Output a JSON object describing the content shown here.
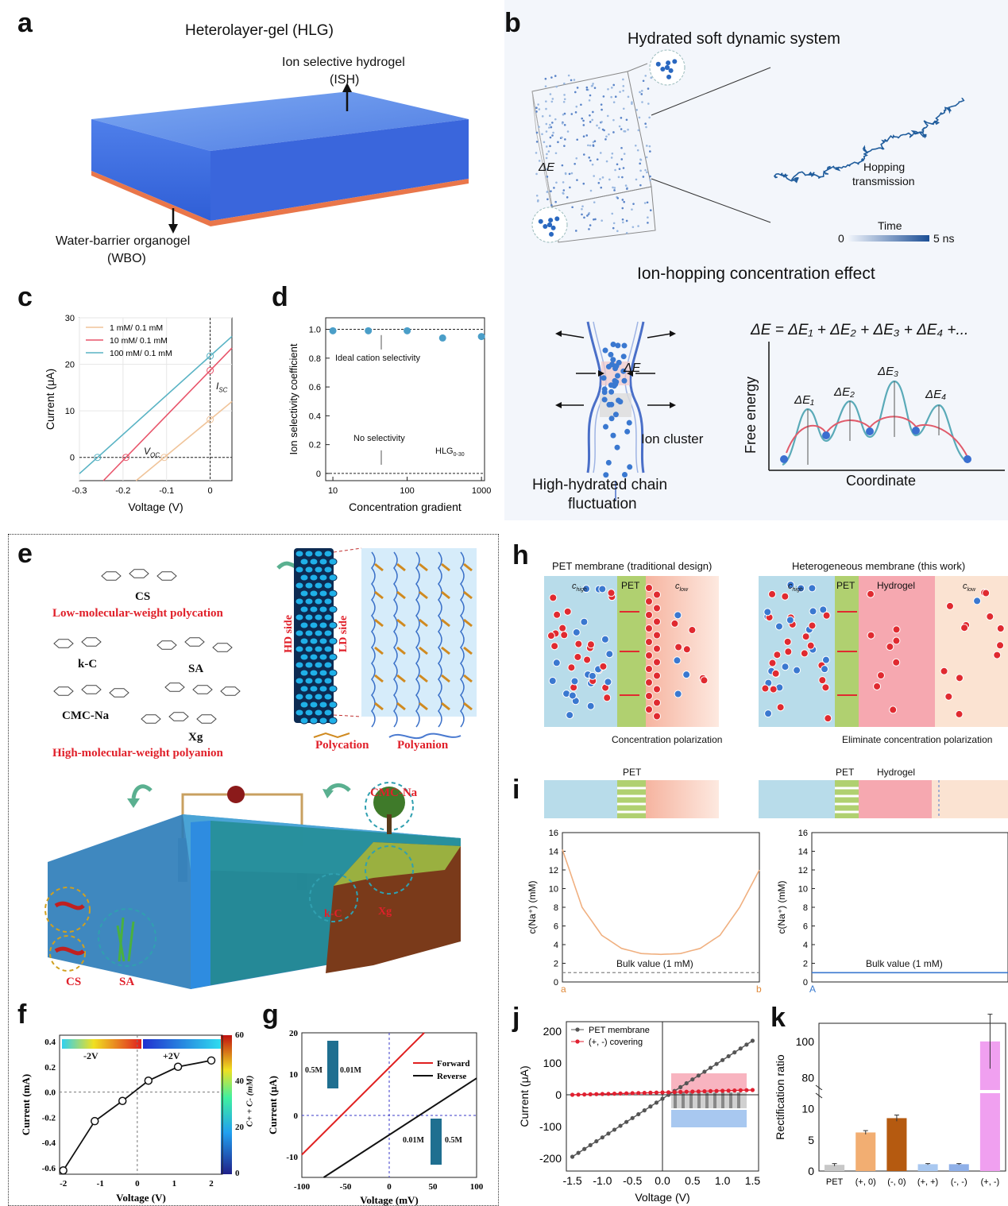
{
  "panels": {
    "a": {
      "label": "a",
      "title": "Heterolayer-gel (HLG)",
      "ish_label_1": "Ion selective hydrogel",
      "ish_label_2": "(ISH)",
      "wbo_label_1": "Water-barrier organogel",
      "wbo_label_2": "(WBO)",
      "colors": {
        "hydrogel": "#3f6fe0",
        "organogel": "#e9764a"
      }
    },
    "b": {
      "label": "b",
      "title": "Hydrated soft dynamic system",
      "delta_e": "ΔE",
      "hopping_1": "Hopping",
      "hopping_2": "transmission",
      "time_label": "Time",
      "time_start": "0",
      "time_end": "5 ns",
      "subtitle": "Ion-hopping concentration effect",
      "equation": "ΔE = ΔE₁ + ΔE₂ + ΔE₃ + ΔE₄ +...",
      "chain_delta": "ΔE",
      "ion_cluster": "Ion cluster",
      "chain_caption_1": "High-hydrated chain",
      "chain_caption_2": "fluctuation",
      "energy_ylabel": "Free energy",
      "energy_xlabel": "Coordinate",
      "barriers": [
        "ΔE₁",
        "ΔE₂",
        "ΔE₃",
        "ΔE₄"
      ]
    },
    "c": {
      "label": "c",
      "voc_label": "V",
      "voc_sub": "OC",
      "isc_label": "I",
      "isc_sub": "SC"
    },
    "d": {
      "label": "d",
      "annot_ideal": "Ideal cation selectivity",
      "annot_none": "No selectivity",
      "series_label": "HLG",
      "series_sub": "0-30"
    },
    "e": {
      "label": "e",
      "cs": "CS",
      "low_mw": "Low-molecular-weight polycation",
      "kc": "k-C",
      "sa": "SA",
      "cmc": "CMC-Na",
      "xg": "Xg",
      "high_mw": "High-molecular-weight polyanion",
      "hd_side": "HD side",
      "ld_side": "LD side",
      "polycation": "Polycation",
      "polyanion": "Polyanion",
      "scene_cmc": "CMC-Na",
      "scene_xg": "Xg",
      "scene_kc": "k-C",
      "scene_cs": "CS",
      "scene_sa": "SA"
    },
    "f": {
      "label": "f",
      "neg": "-2V",
      "pos": "+2V",
      "cbar_label": "C+ + C- (mM)",
      "cbar_ticks": [
        "60",
        "40",
        "20",
        "0"
      ]
    },
    "g": {
      "label": "g",
      "left_a": "0.5M",
      "left_b": "0.01M",
      "right_a": "0.01M",
      "right_b": "0.5M"
    },
    "h": {
      "label": "h",
      "left_title": "PET membrane (traditional design)",
      "right_title": "Heterogeneous membrane (this work)",
      "c_high": "c",
      "c_high_sub": "high",
      "c_low": "c",
      "c_low_sub": "low",
      "pet": "PET",
      "hydrogel": "Hydrogel",
      "left_caption": "Concentration polarization",
      "right_caption": "Eliminate concentration polarization"
    },
    "i": {
      "label": "i",
      "pet": "PET",
      "hydrogel": "Hydrogel",
      "left_bulk": "Bulk value (1 mM)",
      "right_bulk": "Bulk value (1 mM)",
      "left_a": "a",
      "left_b": "b",
      "right_a": "A"
    },
    "j": {
      "label": "j"
    },
    "k": {
      "label": "k"
    }
  },
  "chart_data": [
    {
      "panel": "c",
      "type": "line",
      "xlabel": "Voltage (V)",
      "ylabel": "Current (μA)",
      "xlim": [
        -0.3,
        0.05
      ],
      "ylim": [
        -5,
        30
      ],
      "xticks": [
        "-0.3",
        "-0.2",
        "-0.1",
        "0"
      ],
      "yticks": [
        "0",
        "10",
        "20",
        "30"
      ],
      "legend_position": "top-left",
      "series": [
        {
          "name": "1 mM/ 0.1 mM",
          "color": "#f0c49a",
          "x": [
            -0.17,
            0.05
          ],
          "y": [
            -5,
            12
          ]
        },
        {
          "name": "10 mM/ 0.1 mM",
          "color": "#e8546a",
          "x": [
            -0.245,
            0.05
          ],
          "y": [
            -5,
            23.5
          ]
        },
        {
          "name": "100 mM/ 0.1 mM",
          "color": "#59b3c4",
          "x": [
            -0.3,
            0.05
          ],
          "y": [
            -3.5,
            26
          ]
        }
      ]
    },
    {
      "panel": "d",
      "type": "scatter",
      "xlabel": "Concentration gradient",
      "ylabel": "Ion selectivity coefficient",
      "xscale": "log",
      "xlim": [
        8,
        1100
      ],
      "ylim": [
        -0.05,
        1.08
      ],
      "xticks": [
        "10",
        "100",
        "1000"
      ],
      "yticks": [
        "0",
        "0.2",
        "0.4",
        "0.6",
        "0.8",
        "1.0"
      ],
      "x": [
        10,
        30,
        100,
        300,
        1000
      ],
      "y": [
        0.99,
        0.99,
        0.99,
        0.94,
        0.95
      ]
    },
    {
      "panel": "f",
      "type": "line",
      "xlabel": "Voltage (V)",
      "ylabel": "Current (mA)",
      "xlim": [
        -2.1,
        2.3
      ],
      "ylim": [
        -0.65,
        0.45
      ],
      "xticks": [
        "-2",
        "-1",
        "0",
        "1",
        "2"
      ],
      "yticks": [
        "-0.6",
        "-0.4",
        "-0.2",
        "0.0",
        "0.2",
        "0.4"
      ],
      "x": [
        -2,
        -1.15,
        -0.4,
        0.3,
        1.1,
        2
      ],
      "y": [
        -0.62,
        -0.23,
        -0.07,
        0.09,
        0.2,
        0.25
      ]
    },
    {
      "panel": "g",
      "type": "line",
      "xlabel": "Voltage (mV)",
      "ylabel": "Current (μA)",
      "xlim": [
        -100,
        100
      ],
      "ylim": [
        -15,
        20
      ],
      "xticks": [
        "-100",
        "-50",
        "0",
        "50",
        "100"
      ],
      "yticks": [
        "-10",
        "0",
        "10",
        "20"
      ],
      "legend_position": "right",
      "series": [
        {
          "name": "Forward",
          "color": "#e02020",
          "x": [
            -100,
            40
          ],
          "y": [
            -9.5,
            20
          ]
        },
        {
          "name": "Reverse",
          "color": "#111111",
          "x": [
            -75,
            100
          ],
          "y": [
            -15,
            9
          ]
        }
      ]
    },
    {
      "panel": "i-left",
      "type": "line",
      "ylabel": "c(Na⁺) (mM)",
      "ylim": [
        0,
        16
      ],
      "yticks": [
        "0",
        "2",
        "4",
        "6",
        "8",
        "10",
        "12",
        "14",
        "16"
      ],
      "x": [
        0,
        0.1,
        0.2,
        0.3,
        0.4,
        0.5,
        0.6,
        0.7,
        0.8,
        0.9,
        1
      ],
      "y": [
        14.2,
        8,
        5,
        3.6,
        3.05,
        2.95,
        3.05,
        3.6,
        5,
        8,
        12
      ],
      "bulk_value": 1
    },
    {
      "panel": "i-right",
      "type": "line",
      "ylabel": "c(Na⁺) (mM)",
      "ylim": [
        0,
        16
      ],
      "yticks": [
        "0",
        "2",
        "4",
        "6",
        "8",
        "10",
        "12",
        "14",
        "16"
      ],
      "x": [
        0,
        1
      ],
      "y": [
        1,
        1
      ],
      "bulk_value": 1
    },
    {
      "panel": "j",
      "type": "line",
      "xlabel": "Voltage (V)",
      "ylabel": "Current (μA)",
      "xlim": [
        -1.6,
        1.6
      ],
      "ylim": [
        -240,
        230
      ],
      "xticks": [
        "-1.5",
        "-1.0",
        "-0.5",
        "0.0",
        "0.5",
        "1.0",
        "1.5"
      ],
      "yticks": [
        "200",
        "100",
        "0",
        "-100",
        "-200"
      ],
      "legend_position": "top-left",
      "series": [
        {
          "name": "PET membrane",
          "color": "#555555",
          "x": [
            -1.5,
            1.5
          ],
          "y": [
            -195,
            170
          ]
        },
        {
          "name": "(+, -) covering",
          "color": "#e02030",
          "x": [
            -1.5,
            1.5
          ],
          "y": [
            0,
            15
          ]
        }
      ]
    },
    {
      "panel": "k",
      "type": "bar",
      "ylabel": "Rectification ratio",
      "categories": [
        "PET",
        "(+, 0)",
        "(-, 0)",
        "(+, +)",
        "(-, -)",
        "(+, -)"
      ],
      "values": [
        1,
        6.2,
        8.5,
        1.1,
        1.1,
        100
      ],
      "errors": [
        0.2,
        0.3,
        0.5,
        0.1,
        0.1,
        15
      ],
      "yticks": [
        "0",
        "5",
        "10",
        "80",
        "100"
      ],
      "colors": [
        "#c8c8c8",
        "#f2ae72",
        "#b55a10",
        "#a9c8f0",
        "#8fb0e8",
        "#f0a0f0"
      ]
    }
  ]
}
